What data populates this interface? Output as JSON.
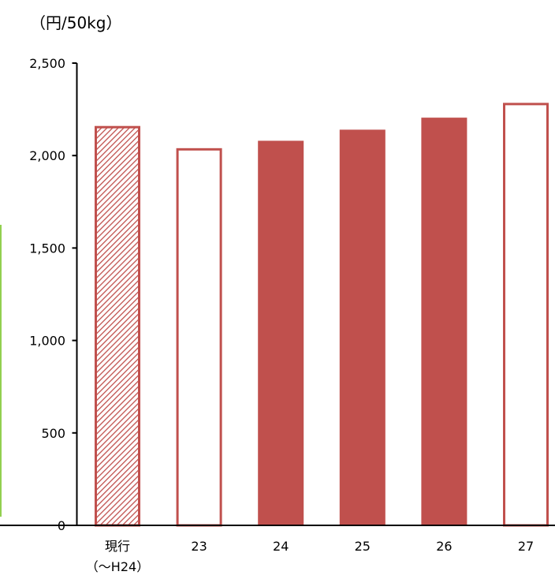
{
  "chart_data": {
    "type": "bar",
    "unit_label": "（円/50kg）",
    "categories": [
      "現行",
      "23",
      "24",
      "25",
      "26",
      "27"
    ],
    "category_sublabels": [
      "（～H24）",
      "",
      "",
      "",
      "",
      ""
    ],
    "values": [
      2160,
      2040,
      2080,
      2140,
      2205,
      2285
    ],
    "bar_styles": [
      "hatched",
      "outline",
      "solid",
      "solid",
      "solid",
      "outline"
    ],
    "yticks": [
      "0",
      "500",
      "1,000",
      "1,500",
      "2,000",
      "2,500"
    ],
    "ylim": [
      0,
      2500
    ],
    "grid": false,
    "legend": "none"
  },
  "colors": {
    "bar": "#c0504d",
    "axis": "#000000",
    "side_accent": "#92d050"
  }
}
